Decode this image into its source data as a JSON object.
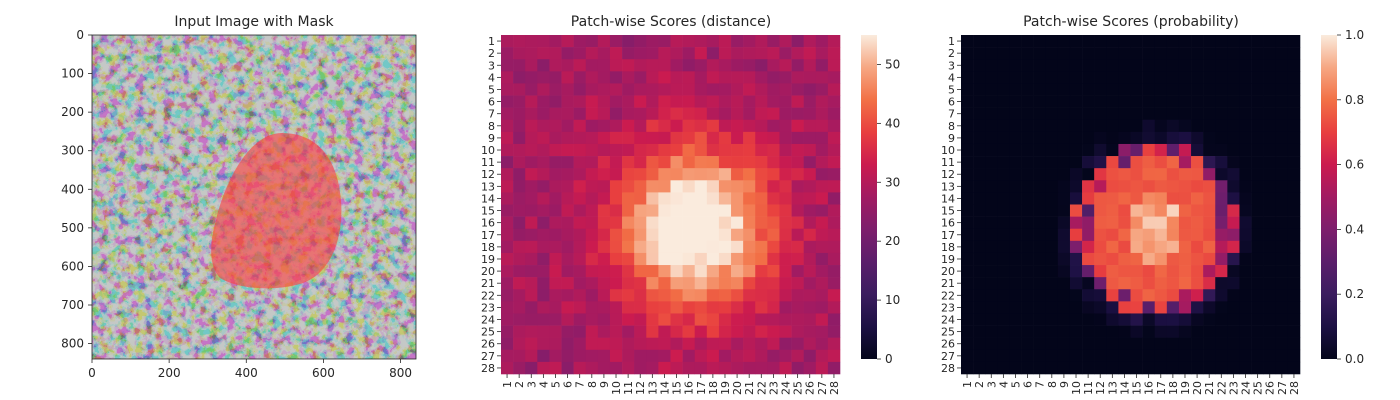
{
  "figure": {
    "panels": [
      {
        "title": "Input Image with Mask"
      },
      {
        "title": "Patch-wise Scores (distance)"
      },
      {
        "title": "Patch-wise Scores (probability)"
      }
    ]
  },
  "chart_data": [
    {
      "type": "image",
      "title": "Input Image with Mask",
      "content": "grayscale speckled texture with red semi-transparent blob mask",
      "xlim": [
        0,
        840
      ],
      "ylim": [
        840,
        0
      ],
      "xticks": [
        0,
        200,
        400,
        600,
        800
      ],
      "yticks": [
        0,
        100,
        200,
        300,
        400,
        500,
        600,
        700,
        800
      ],
      "colors": {
        "texture_light": "#8b918e",
        "texture_dark": "#2a2d2c",
        "mask": "#ff3c3c"
      }
    },
    {
      "type": "heatmap",
      "title": "Patch-wise Scores (distance)",
      "grid_size": 28,
      "x_categories": [
        "1",
        "2",
        "3",
        "4",
        "5",
        "6",
        "7",
        "8",
        "9",
        "10",
        "11",
        "12",
        "13",
        "14",
        "15",
        "16",
        "17",
        "18",
        "19",
        "20",
        "21",
        "22",
        "23",
        "24",
        "25",
        "26",
        "27",
        "28"
      ],
      "y_categories": [
        "1",
        "2",
        "3",
        "4",
        "5",
        "6",
        "7",
        "8",
        "9",
        "10",
        "11",
        "12",
        "13",
        "14",
        "15",
        "16",
        "17",
        "18",
        "19",
        "20",
        "21",
        "22",
        "23",
        "24",
        "25",
        "26",
        "27",
        "28"
      ],
      "colorbar": {
        "range": [
          0,
          55
        ],
        "ticks": [
          0,
          10,
          20,
          30,
          40,
          50
        ]
      },
      "colormap": "rocket",
      "description": "background ~23-30, central blob peaking ~55 around rows 13-20, cols 13-21"
    },
    {
      "type": "heatmap",
      "title": "Patch-wise Scores (probability)",
      "grid_size": 28,
      "x_categories": [
        "1",
        "2",
        "3",
        "4",
        "5",
        "6",
        "7",
        "8",
        "9",
        "10",
        "11",
        "12",
        "13",
        "14",
        "15",
        "16",
        "17",
        "18",
        "19",
        "20",
        "21",
        "22",
        "23",
        "24",
        "25",
        "26",
        "27",
        "28"
      ],
      "y_categories": [
        "1",
        "2",
        "3",
        "4",
        "5",
        "6",
        "7",
        "8",
        "9",
        "10",
        "11",
        "12",
        "13",
        "14",
        "15",
        "16",
        "17",
        "18",
        "19",
        "20",
        "21",
        "22",
        "23",
        "24",
        "25",
        "26",
        "27",
        "28"
      ],
      "colorbar": {
        "range": [
          0,
          1
        ],
        "ticks": [
          "0.0",
          "0.2",
          "0.4",
          "0.6",
          "0.8",
          "1.0"
        ]
      },
      "colormap": "rocket",
      "description": "background ~0, central region ~0.6-0.8, core near 1.0"
    }
  ]
}
